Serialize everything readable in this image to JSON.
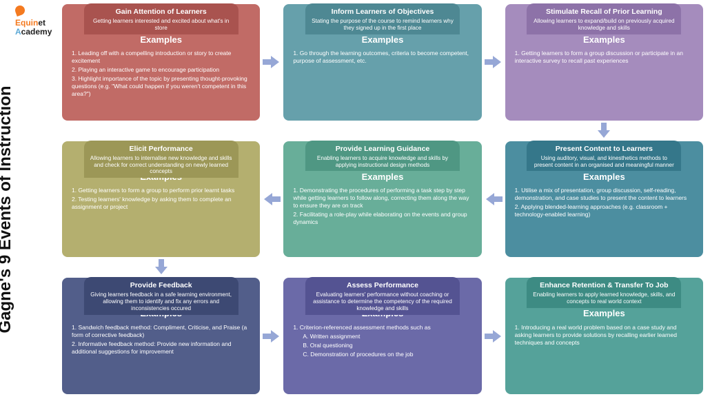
{
  "logo": {
    "line1a": "Equin",
    "line1b": "et",
    "line2a": "A",
    "line2b": "cademy"
  },
  "mainTitle": "Gagne's 9 Events of Instruction",
  "arrowColor": "#96a7d6",
  "examplesHeading": "Examples",
  "cards": {
    "c1": {
      "title": "Gain Attention of Learners",
      "subtitle": "Getting learners interested and excited about what's in store",
      "bg": "#c16b66",
      "tabBg": "#a9534f",
      "ex1": "1. Leading off with a compelling introduction or story to create excitement",
      "ex2": "2. Playing an interactive game to encourage participation",
      "ex3": "3. Highlight importance of the topic by presenting thought-provoking questions (e.g. \"What could happen if you weren't competent in this area?\")"
    },
    "c2": {
      "title": "Inform Learners of Objectives",
      "subtitle": "Stating the purpose of the course to remind learners why they signed up in the first place",
      "bg": "#66a0ab",
      "tabBg": "#4e8893",
      "ex1": "1. Go through the learning outcomes, criteria to become competent, purpose of assessment, etc."
    },
    "c3": {
      "title": "Stimulate Recall of Prior Learning",
      "subtitle": "Allowing learners to expand/build on previously acquired knowledge and skills",
      "bg": "#a58cbd",
      "tabBg": "#8d72a8",
      "ex1": "1. Getting learners to form a group discussion or participate in an interactive survey to recall past experiences"
    },
    "c4": {
      "title": "Present Content to Learners",
      "subtitle": "Using auditory, visual, and kinesthetics methods to present content in an organised and meaningful manner",
      "bg": "#4c8ea0",
      "tabBg": "#35778a",
      "ex1": "1. Utilise a mix of presentation, group discussion, self-reading, demonstration, and case studies to present the content to learners",
      "ex2": "2. Applying blended-learning approaches (e.g. classroom + technology-enabled learning)"
    },
    "c5": {
      "title": "Provide Learning Guidance",
      "subtitle": "Enabling learners to acquire knowledge and skills by applying instructional design methods",
      "bg": "#68ae99",
      "tabBg": "#4f9783",
      "ex1": "1. Demonstrating the procedures of performing a task step by step while getting learners to follow along, correcting them along the way to ensure they are on track",
      "ex2": "2. Facilitating a role-play while elaborating on the events and group dynamics"
    },
    "c6": {
      "title": "Elicit Performance",
      "subtitle": "Allowing learners to internalise new knowledge and skills and check for correct understanding on newly learned concepts",
      "bg": "#b4af6f",
      "tabBg": "#9c9757",
      "ex1": "1. Getting learners to form a group to perform prior learnt tasks",
      "ex2": "2. Testing learners' knowledge by asking them to complete an assignment or project"
    },
    "c7": {
      "title": "Provide Feedback",
      "subtitle": "Giving learners feedback in a safe learning environment, allowing them to identify and fix any errors and inconsistencies occured",
      "bg": "#525e8a",
      "tabBg": "#3d4973",
      "ex1": "1. Sandwich feedback method: Compliment, Criticise, and Praise (a form of corrective feedback)",
      "ex2": "2. Informative feedback method: Provide new information and additional suggestions for improvement"
    },
    "c8": {
      "title": "Assess Performance",
      "subtitle": "Evaluating learners' performance without coaching or assistance to determine the competency of the required knowledge and skills",
      "bg": "#6b6aa8",
      "tabBg": "#545392",
      "ex1": "1. Criterion-referenced assessment methods such as",
      "exA": "A. Written assignment",
      "exB": "B. Oral questioning",
      "exC": "C. Demonstration of procedures on the job"
    },
    "c9": {
      "title": "Enhance Retention & Transfer To Job",
      "subtitle": "Enabling learners to apply learned knowledge, skills, and concepts to real world context",
      "bg": "#55a29a",
      "tabBg": "#3d8b83",
      "ex1": "1. Introducing a real world problem based on a case study and asking learners to provide solutions by recalling earlier learned techniques and concepts"
    }
  }
}
